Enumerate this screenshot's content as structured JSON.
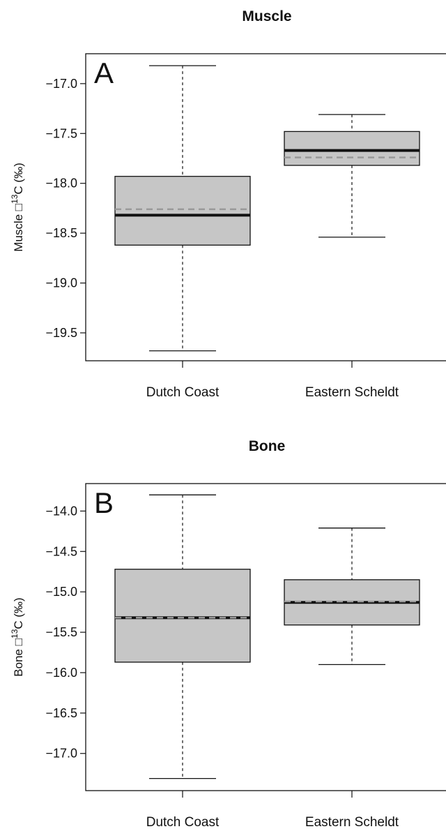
{
  "chart_data": [
    {
      "type": "box",
      "title": "Muscle",
      "panel_label": "A",
      "ylabel": {
        "prefix": "Muscle ",
        "symbol": "□",
        "sup": "13",
        "suffix": "C (‰)"
      },
      "categories": [
        "Dutch Coast",
        "Eastern Scheldt"
      ],
      "yticks": [
        -17.0,
        -17.5,
        -18.0,
        -18.5,
        -19.0,
        -19.5
      ],
      "ytick_labels": [
        "−17.0",
        "−17.5",
        "−18.0",
        "−18.5",
        "−19.0",
        "−19.5"
      ],
      "ylim": [
        -19.78,
        -16.7
      ],
      "boxes": [
        {
          "name": "Dutch Coast",
          "min": -19.68,
          "q1": -18.62,
          "median": -18.32,
          "mean": -18.26,
          "q3": -17.93,
          "max": -16.82
        },
        {
          "name": "Eastern Scheldt",
          "min": -18.54,
          "q1": -17.82,
          "median": -17.67,
          "mean": -17.74,
          "q3": -17.48,
          "max": -17.31
        }
      ],
      "colors": {
        "box_fill": "#c6c6c6",
        "median": "#111111",
        "mean": "#999999"
      }
    },
    {
      "type": "box",
      "title": "Bone",
      "panel_label": "B",
      "ylabel": {
        "prefix": "Bone ",
        "symbol": "□",
        "sup": "13",
        "suffix": "C (‰)"
      },
      "categories": [
        "Dutch Coast",
        "Eastern Scheldt"
      ],
      "yticks": [
        -14.0,
        -14.5,
        -15.0,
        -15.5,
        -16.0,
        -16.5,
        -17.0
      ],
      "ytick_labels": [
        "−14.0",
        "−14.5",
        "−15.0",
        "−15.5",
        "−16.0",
        "−16.5",
        "−17.0"
      ],
      "ylim": [
        -17.46,
        -13.66
      ],
      "boxes": [
        {
          "name": "Dutch Coast",
          "min": -17.31,
          "q1": -15.87,
          "median": -15.32,
          "mean": -15.32,
          "q3": -14.72,
          "max": -13.8
        },
        {
          "name": "Eastern Scheldt",
          "min": -15.9,
          "q1": -15.41,
          "median": -15.13,
          "mean": -15.12,
          "q3": -14.85,
          "max": -14.21
        }
      ],
      "colors": {
        "box_fill": "#c6c6c6",
        "median": "#111111",
        "mean": "#999999"
      }
    }
  ]
}
